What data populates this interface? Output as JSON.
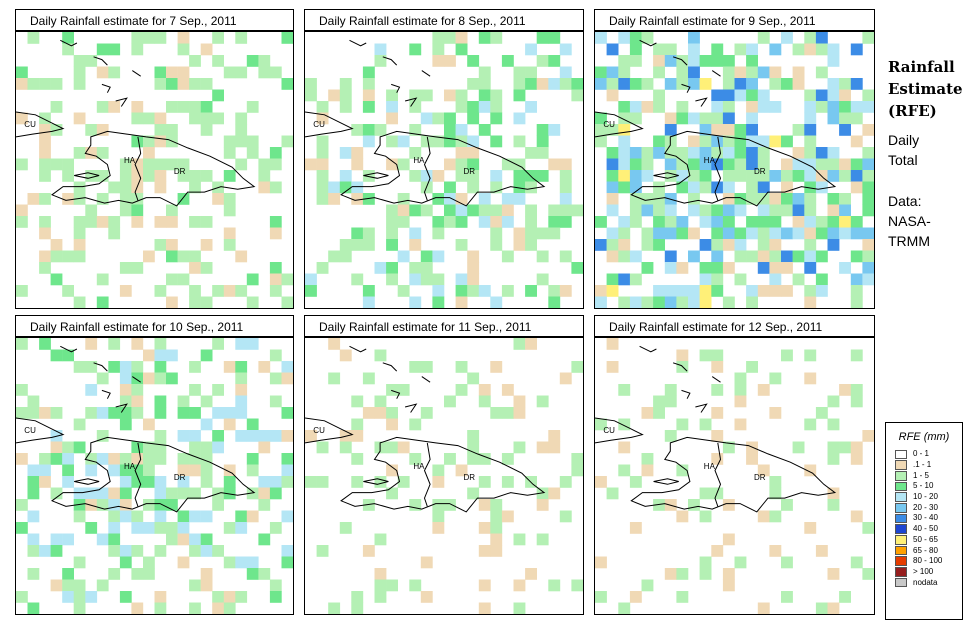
{
  "panels": [
    {
      "title": "Daily Rainfall estimate for  7 Sep., 2011",
      "seed": 7,
      "intensity": 0.55
    },
    {
      "title": "Daily Rainfall estimate for  8 Sep., 2011",
      "seed": 8,
      "intensity": 0.75
    },
    {
      "title": "Daily Rainfall estimate for  9 Sep., 2011",
      "seed": 9,
      "intensity": 1.0
    },
    {
      "title": "Daily Rainfall estimate for  10 Sep., 2011",
      "seed": 10,
      "intensity": 0.8
    },
    {
      "title": "Daily Rainfall estimate for  11 Sep., 2011",
      "seed": 11,
      "intensity": 0.35
    },
    {
      "title": "Daily Rainfall estimate for  12 Sep., 2011",
      "seed": 12,
      "intensity": 0.3
    }
  ],
  "place_labels": {
    "cuba": "CU",
    "haiti": "HA",
    "dominican_republic": "DR"
  },
  "side": {
    "title_line1": "Rainfall",
    "title_line2": "Estimate",
    "title_line3": "(RFE)",
    "text_line1": "Daily",
    "text_line2": "Total",
    "text_line3": "Data:",
    "text_line4": "NASA-",
    "text_line5": "TRMM"
  },
  "legend": {
    "title": "RFE (mm)",
    "items": [
      {
        "label": "0 - 1",
        "color": "#ffffff"
      },
      {
        "label": ".1 - 1",
        "color": "#f0d9b5"
      },
      {
        "label": "1 - 5",
        "color": "#b4f0b4"
      },
      {
        "label": "5 - 10",
        "color": "#6ee68c"
      },
      {
        "label": "10 - 20",
        "color": "#b4e6f5"
      },
      {
        "label": "20 - 30",
        "color": "#78c8f0"
      },
      {
        "label": "30 - 40",
        "color": "#3c8ce6"
      },
      {
        "label": "40 - 50",
        "color": "#1e46d2"
      },
      {
        "label": "50 - 65",
        "color": "#fff078"
      },
      {
        "label": "65 - 80",
        "color": "#ffa000"
      },
      {
        "label": "80 - 100",
        "color": "#e63c00"
      },
      {
        "label": "> 100",
        "color": "#961e1e"
      },
      {
        "label": "nodata",
        "color": "#c8c8c8"
      }
    ]
  }
}
